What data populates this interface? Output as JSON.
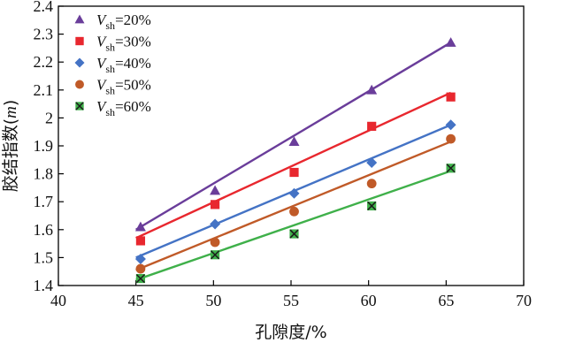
{
  "chart_data": {
    "type": "scatter",
    "title": "",
    "xlabel": "孔隙度/%",
    "ylabel_main": "胶结指数",
    "ylabel_var": "m",
    "xlim": [
      40,
      70
    ],
    "ylim": [
      1.4,
      2.4
    ],
    "x_ticks": [
      "40",
      "45",
      "50",
      "55",
      "60",
      "65",
      "70"
    ],
    "y_ticks": [
      "1.4",
      "1.5",
      "1.6",
      "1.7",
      "1.8",
      "1.9",
      "2",
      "2.1",
      "2.2",
      "2.3",
      "2.4"
    ],
    "grid": false,
    "legend_placement": "top-left",
    "series": [
      {
        "name": "V_sh=20%",
        "var": "V",
        "sub": "sh",
        "value_text": "=20%",
        "color": "#6a3d9a",
        "marker": "triangle",
        "x": [
          45.3,
          50.1,
          55.2,
          60.2,
          65.3
        ],
        "y": [
          1.61,
          1.74,
          1.915,
          2.1,
          2.27
        ],
        "fit": [
          [
            45,
            1.6
          ],
          [
            65.3,
            2.27
          ]
        ]
      },
      {
        "name": "V_sh=30%",
        "var": "V",
        "sub": "sh",
        "value_text": "=30%",
        "color": "#e8272e",
        "marker": "square",
        "x": [
          45.3,
          50.1,
          55.2,
          60.2,
          65.3
        ],
        "y": [
          1.56,
          1.69,
          1.805,
          1.97,
          2.075
        ],
        "fit": [
          [
            45,
            1.57
          ],
          [
            65.3,
            2.09
          ]
        ]
      },
      {
        "name": "V_sh=40%",
        "var": "V",
        "sub": "sh",
        "value_text": "=40%",
        "color": "#4473c5",
        "marker": "diamond",
        "x": [
          45.3,
          50.1,
          55.2,
          60.2,
          65.3
        ],
        "y": [
          1.495,
          1.62,
          1.73,
          1.84,
          1.975
        ],
        "fit": [
          [
            45,
            1.5
          ],
          [
            65.3,
            1.975
          ]
        ]
      },
      {
        "name": "V_sh=50%",
        "var": "V",
        "sub": "sh",
        "value_text": "=50%",
        "color": "#c05a28",
        "marker": "circle",
        "x": [
          45.3,
          50.1,
          55.2,
          60.2,
          65.3
        ],
        "y": [
          1.46,
          1.555,
          1.665,
          1.765,
          1.925
        ],
        "fit": [
          [
            45,
            1.455
          ],
          [
            65.3,
            1.915
          ]
        ]
      },
      {
        "name": "V_sh=60%",
        "var": "V",
        "sub": "sh",
        "value_text": "=60%",
        "color": "#3fb04a",
        "marker": "boxx",
        "x": [
          45.3,
          50.1,
          55.2,
          60.2,
          65.3
        ],
        "y": [
          1.425,
          1.51,
          1.585,
          1.685,
          1.82
        ],
        "fit": [
          [
            45,
            1.42
          ],
          [
            65.3,
            1.81
          ]
        ]
      }
    ]
  }
}
